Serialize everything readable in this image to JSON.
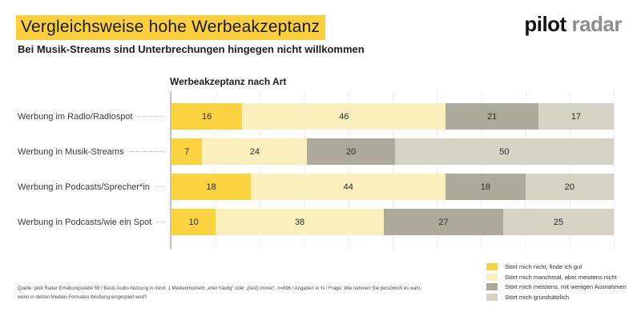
{
  "header": {
    "title": "Vergleichsweise hohe Werbeakzeptanz",
    "subtitle": "Bei Musik-Streams sind Unterbrechungen hingegen nicht willkommen",
    "highlight_color": "#F9CF3D",
    "logo_primary": "pilot",
    "logo_secondary": "radar",
    "logo_secondary_color": "#8E8E8E"
  },
  "chart_data": {
    "type": "bar",
    "orientation": "horizontal",
    "stacked": true,
    "title": "Werbeakzeptanz nach Art",
    "unit": "%",
    "xlim": [
      0,
      100
    ],
    "grid": true,
    "grid_interval": 10,
    "legend_position": "bottom-right",
    "categories": [
      "Werbung im Radio/Radiospot",
      "Werbung in Musik-Streams",
      "Werbung in Podcasts/Sprecher*in",
      "Werbung in Podcasts/wie ein Spot"
    ],
    "series": [
      {
        "name": "Stört mich nicht, finde ich gut",
        "color": "#FBD23F",
        "values": [
          16,
          7,
          18,
          10
        ]
      },
      {
        "name": "Stört mich manchmal, aber meistens nicht",
        "color": "#FAEFBD",
        "values": [
          46,
          24,
          44,
          38
        ]
      },
      {
        "name": "Stört mich meistens, mit wenigen Ausnahmen",
        "color": "#AEAA9B",
        "values": [
          21,
          20,
          18,
          27
        ]
      },
      {
        "name": "Stört mich grundsätzlich",
        "color": "#D6D3C4",
        "values": [
          17,
          50,
          20,
          25
        ]
      }
    ]
  },
  "footer": {
    "source_line1": "Quelle: pilot Radar Erhebungswelle 55 / Basis Audio-Nutzung in mind. 1 Medienmoment „eher häufig“ oder „(fast) immer“, n=896 / Angaben in % / Frage: Wie nehmen Sie persönlich es wahr,",
    "source_line2": "wenn in diesen Medien-Formaten Werbung eingespielt wird?"
  }
}
